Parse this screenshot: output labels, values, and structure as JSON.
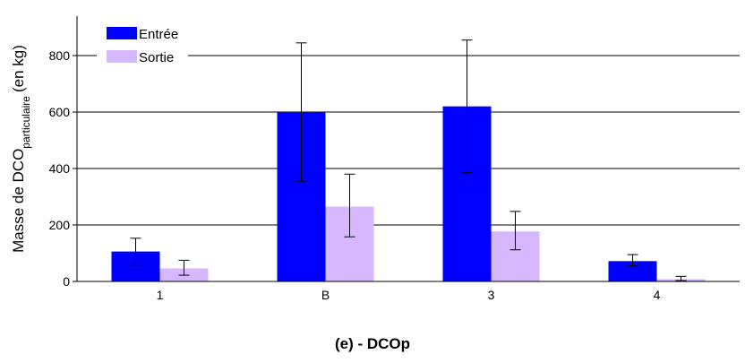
{
  "chart_data": {
    "type": "bar",
    "categories": [
      "1",
      "B",
      "3",
      "4"
    ],
    "series": [
      {
        "name": "Entrée",
        "color": "#0000FF",
        "values": [
          106,
          600,
          620,
          72
        ],
        "err_low": [
          58,
          355,
          385,
          55
        ],
        "err_high": [
          153,
          845,
          855,
          95
        ]
      },
      {
        "name": "Sortie",
        "color": "#D7B7FF",
        "values": [
          46,
          265,
          177,
          8
        ],
        "err_low": [
          22,
          158,
          112,
          3
        ],
        "err_high": [
          75,
          380,
          248,
          18
        ]
      }
    ],
    "ylim": [
      0,
      950
    ],
    "yticks": [
      0,
      200,
      400,
      600,
      800
    ],
    "ylabel_main": "Masse de DCO",
    "ylabel_sub": "particulaire",
    "ylabel_unit": "(en kg)",
    "grid": true,
    "legend": "top-left"
  },
  "caption": "(e) - DCOp"
}
